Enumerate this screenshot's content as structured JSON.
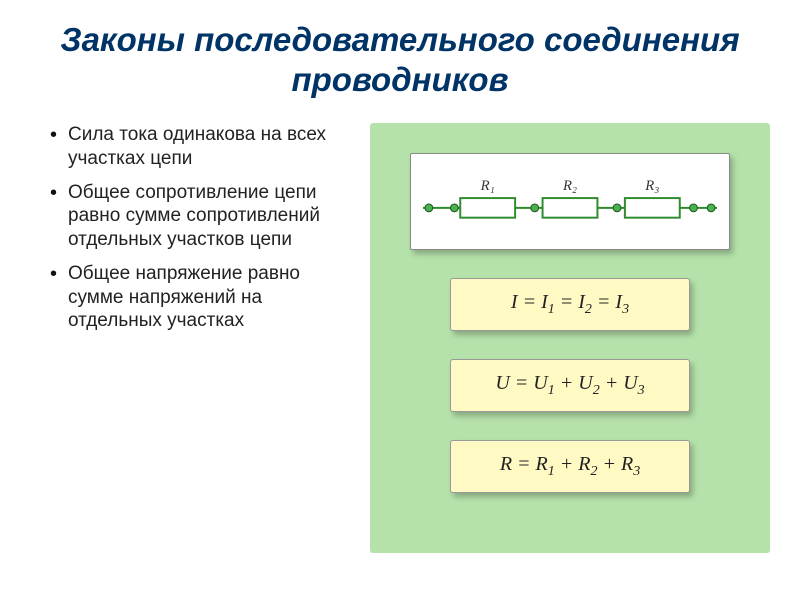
{
  "title": "Законы последовательного соединения проводников",
  "bullets": [
    "Сила тока одинакова на всех участках цепи",
    "Общее сопротивление цепи равно сумме сопротивлений отдельных участков цепи",
    "Общее напряжение равно сумме напряжений на отдельных участках"
  ],
  "circuit": {
    "labels": [
      "R₁",
      "R₂",
      "R₃"
    ],
    "resistor_stroke": "#2e8b2e",
    "resistor_fill": "#ffffff",
    "wire_color": "#2e8b2e",
    "node_color": "#4caf50",
    "label_color": "#333333",
    "label_fontsize": 15
  },
  "formulas": [
    {
      "html": "<i>I</i> = <i>I<span class='sub'>1</span></i> = <i>I<span class='sub'>2</span></i> = <i>I<span class='sub'>3</span></i>"
    },
    {
      "html": "<i>U</i> = <i>U<span class='sub'>1</span></i> + <i>U<span class='sub'>2</span></i> + <i>U<span class='sub'>3</span></i>"
    },
    {
      "html": "<i>R</i> = <i>R<span class='sub'>1</span></i> + <i>R<span class='sub'>2</span></i> + <i>R<span class='sub'>3</span></i>"
    }
  ],
  "colors": {
    "title_color": "#003366",
    "panel_bg": "#b5e2aa",
    "formula_bg": "#fff9c4",
    "circuit_bg": "#ffffff"
  }
}
